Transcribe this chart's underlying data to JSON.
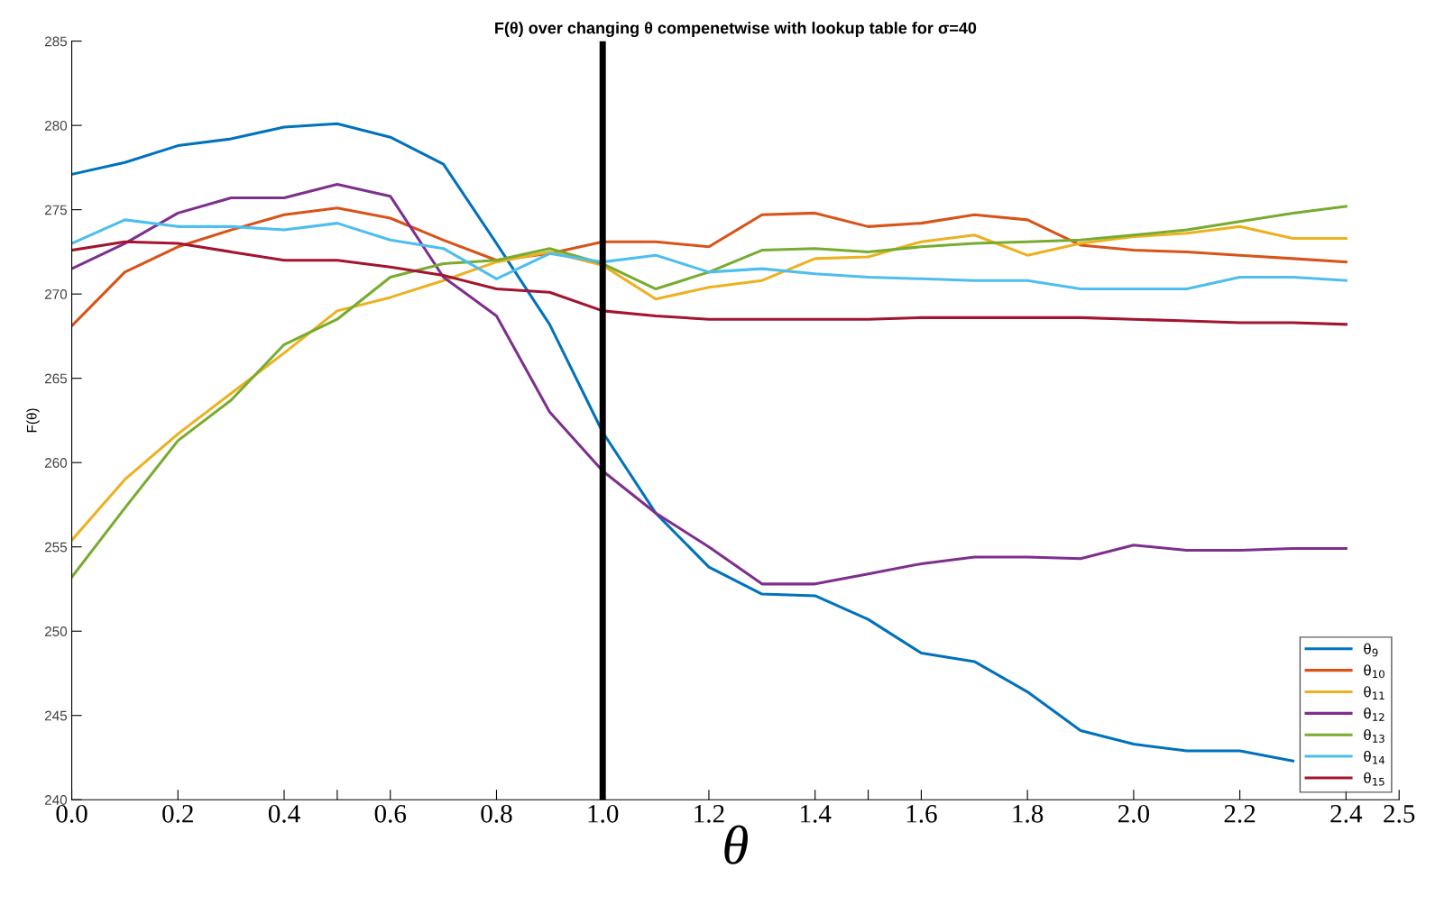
{
  "chart_data": {
    "type": "line",
    "title": "F(θ) over changing θ compenetwise with lookup table for σ=40",
    "xlabel": "θ",
    "ylabel": "F(θ)",
    "x": [
      0,
      0.1,
      0.2,
      0.3,
      0.4,
      0.5,
      0.6,
      0.7,
      0.8,
      0.9,
      1.0,
      1.1,
      1.2,
      1.3,
      1.4,
      1.5,
      1.6,
      1.7,
      1.8,
      1.9,
      2.0,
      2.1,
      2.2,
      2.3,
      2.4
    ],
    "series": [
      {
        "name": "θ$_{9}$",
        "color": "#0072bd",
        "values": [
          277.1,
          277.8,
          278.8,
          279.2,
          279.9,
          280.1,
          279.3,
          277.7,
          273.0,
          268.2,
          261.8,
          257.0,
          253.8,
          252.2,
          252.1,
          250.7,
          248.7,
          248.2,
          246.4,
          244.1,
          243.3,
          242.9,
          242.9,
          242.3,
          null
        ]
      },
      {
        "name": "θ$_{10}$",
        "color": "#d95319",
        "values": [
          268.1,
          271.3,
          272.8,
          273.8,
          274.7,
          275.1,
          274.5,
          273.2,
          272.0,
          272.4,
          273.1,
          273.1,
          272.8,
          274.7,
          274.8,
          274.0,
          274.2,
          274.7,
          274.4,
          272.9,
          272.6,
          272.5,
          272.3,
          272.1,
          271.9
        ]
      },
      {
        "name": "θ$_{11}$",
        "color": "#edb120",
        "values": [
          255.4,
          259.0,
          261.7,
          264.1,
          266.5,
          269.0,
          269.8,
          270.8,
          271.9,
          272.5,
          271.7,
          269.7,
          270.4,
          270.8,
          272.1,
          272.2,
          273.1,
          273.5,
          272.3,
          273.0,
          273.4,
          273.6,
          274.0,
          273.3,
          273.3
        ]
      },
      {
        "name": "θ$_{12}$",
        "color": "#7e2f8e",
        "values": [
          271.5,
          273.0,
          274.8,
          275.7,
          275.7,
          276.5,
          275.8,
          271.0,
          268.7,
          263.0,
          259.5,
          257.0,
          255.0,
          252.8,
          252.8,
          253.4,
          254.0,
          254.4,
          254.4,
          254.3,
          255.1,
          254.8,
          254.8,
          254.9,
          254.9
        ]
      },
      {
        "name": "θ$_{13}$",
        "color": "#77ac30",
        "values": [
          253.2,
          257.3,
          261.3,
          263.7,
          267.0,
          268.5,
          271.0,
          271.8,
          272.0,
          272.7,
          271.8,
          270.3,
          271.3,
          272.6,
          272.7,
          272.5,
          272.8,
          273.0,
          273.1,
          273.2,
          273.5,
          273.8,
          274.3,
          274.8,
          275.2
        ]
      },
      {
        "name": "θ$_{14}$",
        "color": "#4dbeee",
        "values": [
          273.0,
          274.4,
          274.0,
          274.0,
          273.8,
          274.2,
          273.2,
          272.7,
          270.9,
          272.4,
          271.9,
          272.3,
          271.3,
          271.5,
          271.2,
          271.0,
          270.9,
          270.8,
          270.8,
          270.3,
          270.3,
          270.3,
          271.0,
          271.0,
          270.8
        ]
      },
      {
        "name": "θ$_{15}$",
        "color": "#a2142f",
        "values": [
          272.6,
          273.1,
          273.0,
          272.5,
          272.0,
          272.0,
          271.6,
          271.1,
          270.3,
          270.1,
          269.0,
          268.7,
          268.5,
          268.5,
          268.5,
          268.5,
          268.6,
          268.6,
          268.6,
          268.6,
          268.5,
          268.4,
          268.3,
          268.3,
          268.2
        ]
      }
    ],
    "xlim": [
      0,
      2.5
    ],
    "ylim": [
      240,
      285
    ],
    "xticks": [
      {
        "value": 0,
        "label": "0.0"
      },
      {
        "value": 0.2,
        "label": "0.2"
      },
      {
        "value": 0.4,
        "label": "0.4"
      },
      {
        "value": 0.5,
        "label": null
      },
      {
        "value": 0.6,
        "label": "0.6"
      },
      {
        "value": 0.8,
        "label": "0.8"
      },
      {
        "value": 1.0,
        "label": "1.0"
      },
      {
        "value": 1.2,
        "label": "1.2"
      },
      {
        "value": 1.4,
        "label": "1.4"
      },
      {
        "value": 1.5,
        "label": null
      },
      {
        "value": 1.6,
        "label": "1.6"
      },
      {
        "value": 1.8,
        "label": "1.8"
      },
      {
        "value": 2.0,
        "label": "2.0"
      },
      {
        "value": 2.2,
        "label": "2.2"
      },
      {
        "value": 2.4,
        "label": "2.4"
      },
      2.5
    ],
    "yticks": [
      240,
      245,
      250,
      255,
      260,
      265,
      270,
      275,
      280,
      285
    ],
    "ref_lines": [
      {
        "axis": "x",
        "value": 1.0,
        "color": "#000000",
        "line_style": "solid"
      }
    ],
    "grid": false,
    "legend": "bottom right",
    "marker": "none",
    "line_style": "solid"
  }
}
